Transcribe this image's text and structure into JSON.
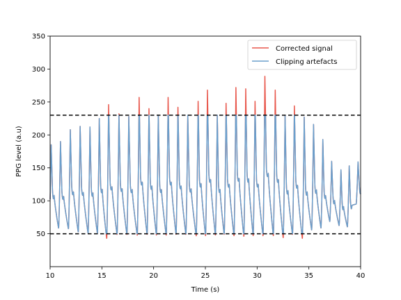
{
  "chart_data": {
    "type": "line",
    "title": "",
    "xlabel": "Time (s)",
    "ylabel": "PPG level (a.u)",
    "xlim": [
      10,
      40
    ],
    "ylim": [
      0,
      350
    ],
    "xticks": [
      10,
      15,
      20,
      25,
      30,
      35,
      40
    ],
    "yticks": [
      50,
      100,
      150,
      200,
      250,
      300,
      350
    ],
    "grid": false,
    "legend_position": "top-right",
    "thresholds": [
      {
        "y": 230,
        "style": "dashed",
        "color": "#000000"
      },
      {
        "y": 50,
        "style": "dashed",
        "color": "#000000"
      }
    ],
    "beats": [
      {
        "t": 10.1,
        "peak": 185,
        "trough": 63
      },
      {
        "t": 11.0,
        "peak": 190,
        "trough": 58
      },
      {
        "t": 11.95,
        "peak": 208,
        "trough": 57
      },
      {
        "t": 12.9,
        "peak": 213,
        "trough": 52
      },
      {
        "t": 13.85,
        "peak": 212,
        "trough": 50
      },
      {
        "t": 14.75,
        "peak": 225,
        "trough": 50
      },
      {
        "t": 15.65,
        "peak": 246,
        "trough": 42
      },
      {
        "t": 16.65,
        "peak": 232,
        "trough": 48
      },
      {
        "t": 17.6,
        "peak": 228,
        "trough": 48
      },
      {
        "t": 18.6,
        "peak": 257,
        "trough": 47
      },
      {
        "t": 19.55,
        "peak": 240,
        "trough": 48
      },
      {
        "t": 20.45,
        "peak": 230,
        "trough": 47
      },
      {
        "t": 21.4,
        "peak": 257,
        "trough": 47
      },
      {
        "t": 22.35,
        "peak": 242,
        "trough": 48
      },
      {
        "t": 23.3,
        "peak": 230,
        "trough": 48
      },
      {
        "t": 24.3,
        "peak": 251,
        "trough": 46
      },
      {
        "t": 25.2,
        "peak": 268,
        "trough": 46
      },
      {
        "t": 26.15,
        "peak": 230,
        "trough": 47
      },
      {
        "t": 27.0,
        "peak": 248,
        "trough": 48
      },
      {
        "t": 27.95,
        "peak": 272,
        "trough": 46
      },
      {
        "t": 28.9,
        "peak": 270,
        "trough": 45
      },
      {
        "t": 29.8,
        "peak": 251,
        "trough": 46
      },
      {
        "t": 30.75,
        "peak": 289,
        "trough": 46
      },
      {
        "t": 31.75,
        "peak": 268,
        "trough": 46
      },
      {
        "t": 32.7,
        "peak": 230,
        "trough": 43
      },
      {
        "t": 33.6,
        "peak": 244,
        "trough": 48
      },
      {
        "t": 34.55,
        "peak": 227,
        "trough": 42
      },
      {
        "t": 35.45,
        "peak": 216,
        "trough": 55
      },
      {
        "t": 36.35,
        "peak": 193,
        "trough": 58
      },
      {
        "t": 37.2,
        "peak": 160,
        "trough": 68
      },
      {
        "t": 38.1,
        "peak": 147,
        "trough": 62
      },
      {
        "t": 38.9,
        "peak": 153,
        "trough": 60
      },
      {
        "t": 39.75,
        "peak": 159,
        "trough": 95
      }
    ],
    "series": [
      {
        "name": "Corrected signal",
        "color": "#e8574c",
        "clip": null
      },
      {
        "name": "Clipping artefacts",
        "color": "#6a9fcc",
        "clip": [
          50,
          230
        ]
      }
    ]
  }
}
